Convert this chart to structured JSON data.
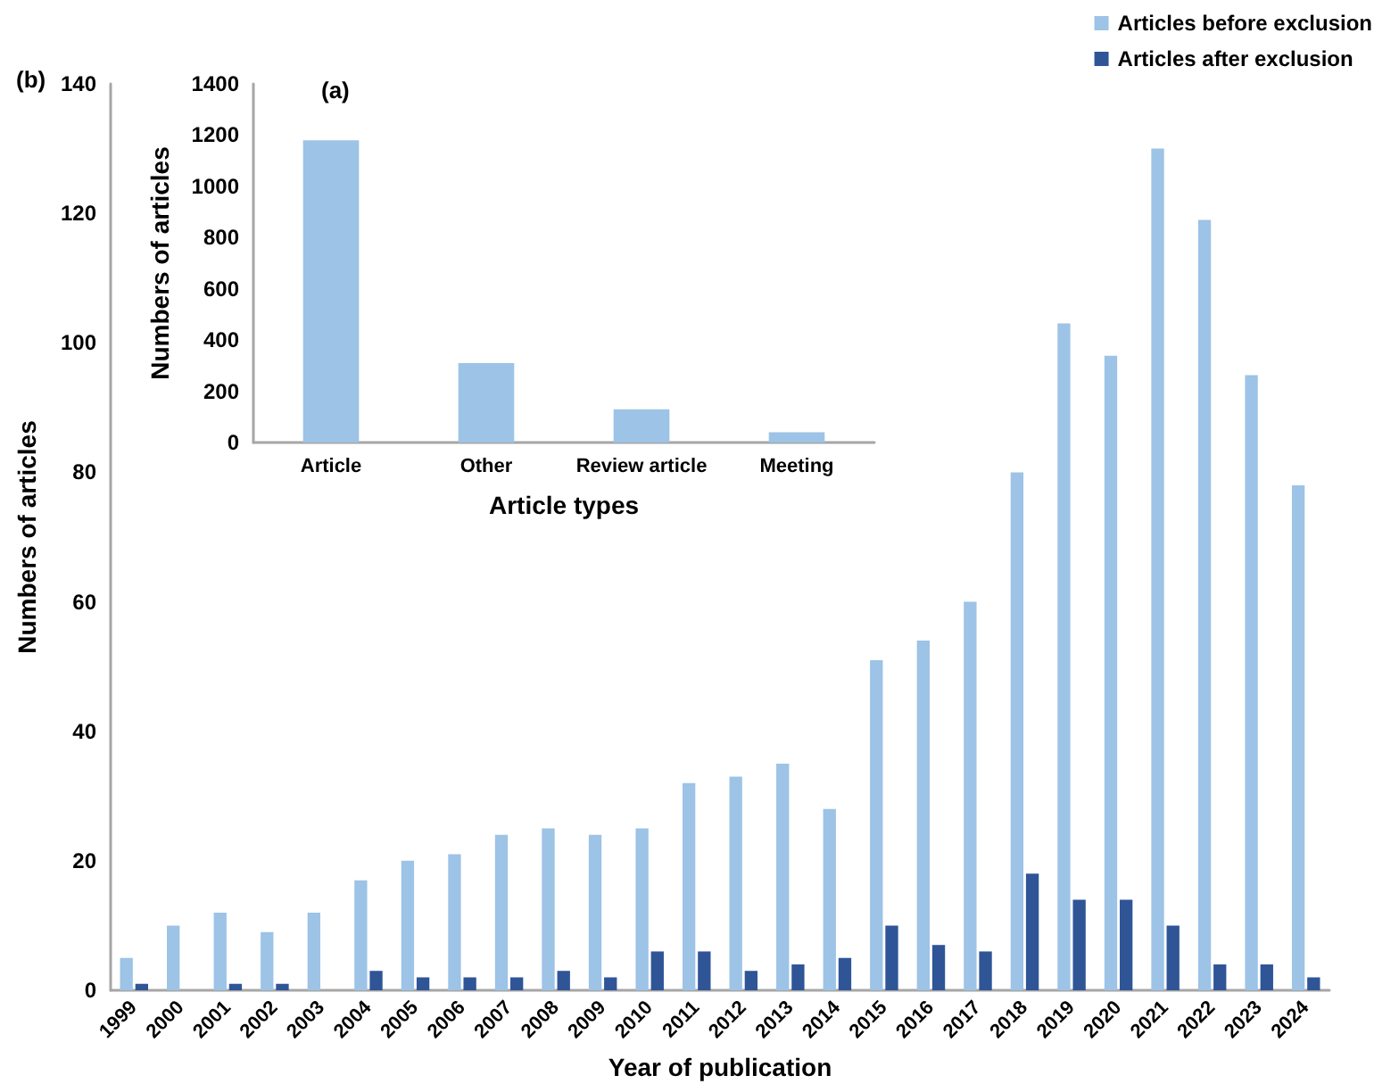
{
  "chart_data": [
    {
      "type": "bar",
      "title": "(b)",
      "xlabel": "Year of publication",
      "ylabel": "Numbers of articles",
      "categories": [
        "1999",
        "2000",
        "2001",
        "2002",
        "2003",
        "2004",
        "2005",
        "2006",
        "2007",
        "2008",
        "2009",
        "2010",
        "2011",
        "2012",
        "2013",
        "2014",
        "2015",
        "2016",
        "2017",
        "2018",
        "2019",
        "2020",
        "2021",
        "2022",
        "2023",
        "2024"
      ],
      "series": [
        {
          "name": "Articles before exclusion",
          "color": "#9dc3e6",
          "values": [
            5,
            10,
            12,
            9,
            12,
            17,
            20,
            21,
            24,
            25,
            24,
            25,
            32,
            33,
            35,
            28,
            51,
            54,
            60,
            80,
            103,
            98,
            130,
            119,
            95,
            78
          ]
        },
        {
          "name": "Articles after exclusion",
          "color": "#2f5597",
          "values": [
            1,
            0,
            1,
            1,
            0,
            3,
            2,
            2,
            2,
            3,
            2,
            6,
            6,
            3,
            4,
            5,
            10,
            7,
            6,
            18,
            14,
            14,
            10,
            4,
            4,
            2
          ]
        }
      ],
      "ylim": [
        0,
        140
      ],
      "yticks": [
        0,
        20,
        40,
        60,
        80,
        100,
        120,
        140
      ],
      "grid": false,
      "legend": "top right"
    },
    {
      "type": "bar",
      "title": "(a)",
      "xlabel": "Article types",
      "ylabel": "Numbers of articles",
      "categories": [
        "Article",
        "Other",
        "Review article",
        "Meeting"
      ],
      "values": [
        1180,
        310,
        130,
        40
      ],
      "color": "#9dc3e6",
      "ylim": [
        0,
        1400
      ],
      "yticks": [
        0,
        200,
        400,
        600,
        800,
        1000,
        1200,
        1400
      ],
      "grid": false,
      "legend": false
    }
  ]
}
